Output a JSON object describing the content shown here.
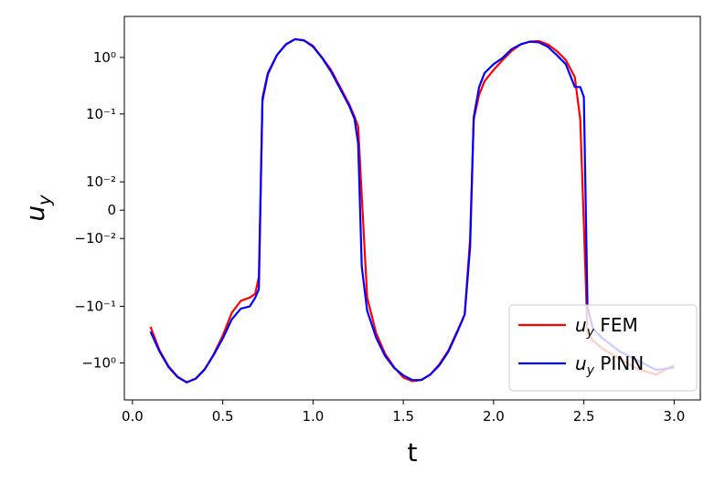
{
  "chart_data": {
    "type": "line",
    "xlabel": "t",
    "ylabel": "u_y",
    "yscale": "symlog",
    "linthresh": 0.02,
    "xlim": [
      -0.045,
      3.145
    ],
    "xticks": [
      {
        "value": 0,
        "label": "0.0"
      },
      0.5,
      {
        "value": 1,
        "label": "1.0"
      },
      1.5,
      {
        "value": 2,
        "label": "2.0"
      },
      2.5,
      {
        "value": 3,
        "label": "3.0"
      }
    ],
    "ylim": [
      -4.5,
      5.3
    ],
    "yticks": [
      {
        "value": -1,
        "label": "−10⁰"
      },
      {
        "value": -0.1,
        "label": "−10⁻¹"
      },
      {
        "value": -0.01,
        "label": "−10⁻²"
      },
      0,
      {
        "value": 0.01,
        "label": "10⁻²"
      },
      {
        "value": 0.1,
        "label": "10⁻¹"
      },
      {
        "value": 1,
        "label": "10⁰"
      }
    ],
    "legend": "lower right",
    "x": [
      0.1,
      0.15,
      0.2,
      0.25,
      0.3,
      0.35,
      0.4,
      0.45,
      0.5,
      0.55,
      0.6,
      0.65,
      0.68,
      0.7,
      0.72,
      0.75,
      0.8,
      0.85,
      0.9,
      0.95,
      1.0,
      1.05,
      1.1,
      1.15,
      1.2,
      1.23,
      1.25,
      1.27,
      1.3,
      1.35,
      1.4,
      1.45,
      1.5,
      1.55,
      1.6,
      1.65,
      1.7,
      1.75,
      1.8,
      1.84,
      1.87,
      1.89,
      1.92,
      1.95,
      2.0,
      2.05,
      2.1,
      2.15,
      2.2,
      2.25,
      2.3,
      2.35,
      2.4,
      2.45,
      2.48,
      2.5,
      2.52,
      2.55,
      2.6,
      2.7,
      2.8,
      2.9,
      3.0
    ],
    "series": [
      {
        "name": "u_y FEM",
        "color": "#ff0000",
        "values": [
          -0.23,
          -0.6,
          -1.15,
          -1.75,
          -2.2,
          -1.9,
          -1.3,
          -0.7,
          -0.33,
          -0.13,
          -0.08,
          -0.07,
          -0.06,
          -0.03,
          0.17,
          0.5,
          1.1,
          1.7,
          2.1,
          2.0,
          1.6,
          1.0,
          0.6,
          0.3,
          0.15,
          0.09,
          0.06,
          0.005,
          -0.07,
          -0.3,
          -0.7,
          -1.2,
          -1.8,
          -2.1,
          -2.0,
          -1.6,
          -1.05,
          -0.6,
          -0.27,
          -0.14,
          -0.01,
          0.08,
          0.22,
          0.38,
          0.6,
          0.9,
          1.3,
          1.7,
          1.9,
          1.95,
          1.7,
          1.3,
          0.9,
          0.45,
          0.08,
          -0.005,
          -0.3,
          -0.4,
          -0.55,
          -0.85,
          -1.3,
          -1.6,
          -1.1
        ]
      },
      {
        "name": "u_y PINN",
        "color": "#0000ff",
        "values": [
          -0.28,
          -0.63,
          -1.18,
          -1.78,
          -2.2,
          -1.9,
          -1.3,
          -0.72,
          -0.37,
          -0.17,
          -0.11,
          -0.1,
          -0.07,
          -0.05,
          0.19,
          0.53,
          1.1,
          1.7,
          2.1,
          2.0,
          1.55,
          0.98,
          0.56,
          0.28,
          0.14,
          0.082,
          0.03,
          -0.02,
          -0.12,
          -0.36,
          -0.76,
          -1.23,
          -1.66,
          -2.0,
          -2.0,
          -1.6,
          -1.1,
          -0.63,
          -0.28,
          -0.14,
          -0.013,
          0.088,
          0.3,
          0.53,
          0.76,
          0.98,
          1.4,
          1.7,
          1.9,
          1.85,
          1.55,
          1.1,
          0.76,
          0.3,
          0.3,
          0.2,
          -0.1,
          -0.25,
          -0.36,
          -0.63,
          -0.91,
          -1.33,
          -1.2
        ]
      }
    ]
  }
}
